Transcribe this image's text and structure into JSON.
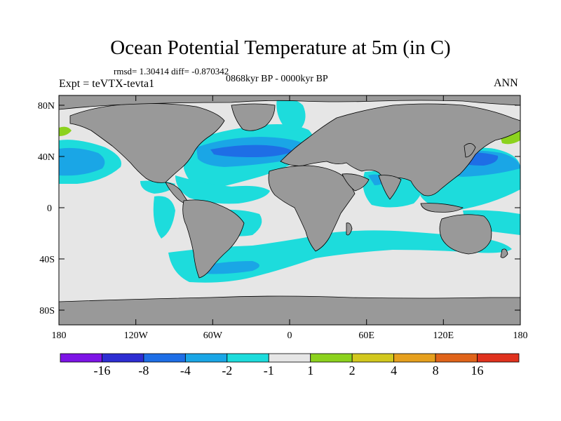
{
  "title": "Ocean Potential Temperature at 5m (in C)",
  "stats": "rmsd= 1.30414  diff= -0.870342",
  "period": "0868kyr BP - 0000kyr BP",
  "experiment": "Expt = teVTX-tevta1",
  "season": "ANN",
  "lat_ticks": [
    "80N",
    "40N",
    "0",
    "40S",
    "80S"
  ],
  "lon_ticks": [
    "180",
    "120W",
    "60W",
    "0",
    "60E",
    "120E",
    "180"
  ],
  "colorbar": {
    "labels": [
      "-16",
      "-8",
      "-4",
      "-2",
      "-1",
      "1",
      "2",
      "4",
      "8",
      "16"
    ],
    "colors": [
      "#7d14e6",
      "#2d2dd2",
      "#1e6ee6",
      "#1aa6e6",
      "#1ddcdc",
      "#e6e6e6",
      "#8cd21e",
      "#d2c81e",
      "#e6a01e",
      "#e0641a",
      "#e0321e"
    ]
  },
  "legend_colors": {
    "land": "#999999",
    "no_change": "#e6e6e6",
    "cool_1_2": "#1ddcdc",
    "cool_2_4": "#1aa6e6",
    "cool_4_8": "#1e6ee6",
    "warm_1_2": "#8cd21e"
  }
}
